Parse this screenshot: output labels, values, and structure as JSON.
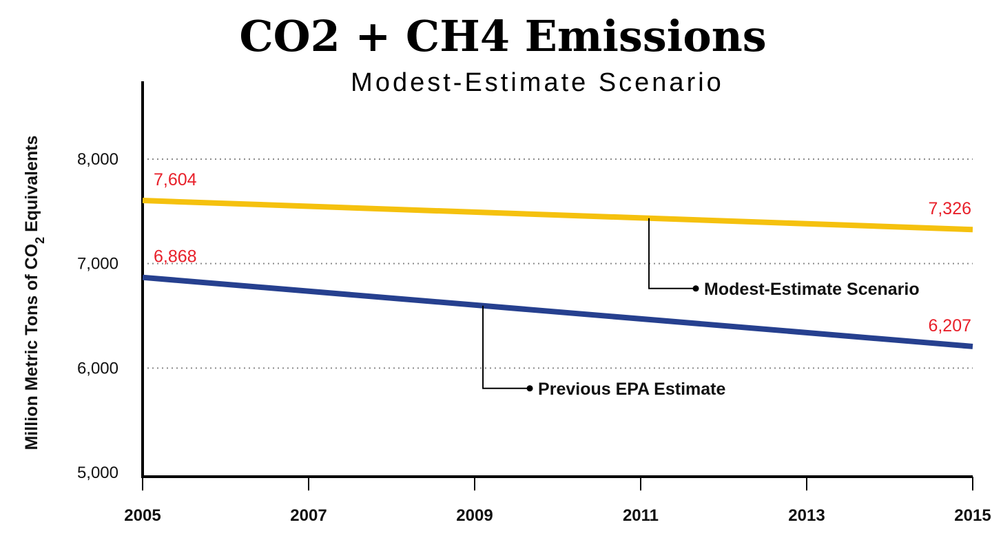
{
  "chart_data": {
    "type": "line",
    "title": "CO2 + CH4 Emissions",
    "subtitle": "Modest-Estimate Scenario",
    "ylabel": "Million Metric Tons of CO2 Equivalents",
    "xlabel": "",
    "xlim": [
      2005,
      2015
    ],
    "ylim": [
      5000,
      8000
    ],
    "x_ticks": [
      "2005",
      "2007",
      "2009",
      "2011",
      "2013",
      "2015"
    ],
    "y_ticks": [
      "5,000",
      "6,000",
      "7,000",
      "8,000"
    ],
    "grid": "horizontal dotted",
    "legend": "inline callouts",
    "series": [
      {
        "name": "Modest-Estimate Scenario",
        "color": "#f5c10e",
        "x": [
          2005,
          2015
        ],
        "y": [
          7604,
          7326
        ],
        "labels": [
          "7,604",
          "7,326"
        ]
      },
      {
        "name": "Previous EPA Estimate",
        "color": "#26408f",
        "x": [
          2005,
          2015
        ],
        "y": [
          6868,
          6207
        ],
        "labels": [
          "6,868",
          "6,207"
        ]
      }
    ],
    "label_color": "#e8202a"
  }
}
